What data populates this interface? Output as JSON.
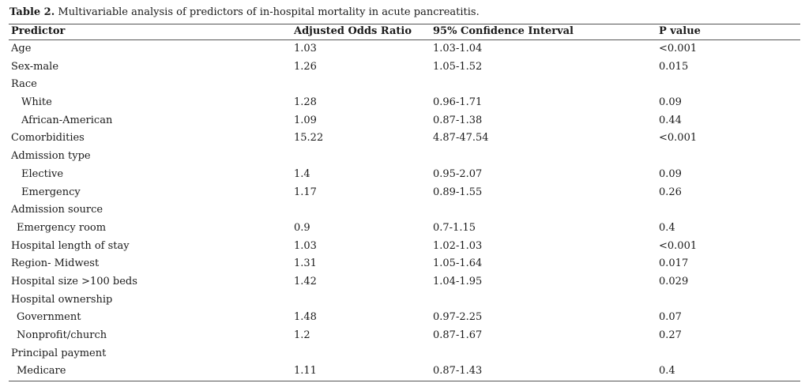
{
  "caption": {
    "label": "Table 2.",
    "text": " Multivariable analysis of predictors of in-hospital mortality in acute pancreatitis."
  },
  "columns": [
    "Predictor",
    "Adjusted Odds Ratio",
    "95% Confidence Interval",
    "P value"
  ],
  "rows": [
    {
      "predictor": "Age",
      "or": "1.03",
      "ci": "1.03-1.04",
      "p": "<0.001",
      "indent": 0
    },
    {
      "predictor": "Sex-male",
      "or": "1.26",
      "ci": "1.05-1.52",
      "p": "0.015",
      "indent": 0
    },
    {
      "predictor": "Race",
      "or": "",
      "ci": "",
      "p": "",
      "indent": 0
    },
    {
      "predictor": "White",
      "or": "1.28",
      "ci": "0.96-1.71",
      "p": "0.09",
      "indent": 1
    },
    {
      "predictor": "African-American",
      "or": "1.09",
      "ci": "0.87-1.38",
      "p": "0.44",
      "indent": 1
    },
    {
      "predictor": "Comorbidities",
      "or": "15.22",
      "ci": "4.87-47.54",
      "p": "<0.001",
      "indent": 0
    },
    {
      "predictor": "Admission type",
      "or": "",
      "ci": "",
      "p": "",
      "indent": 0
    },
    {
      "predictor": "Elective",
      "or": "1.4",
      "ci": "0.95-2.07",
      "p": "0.09",
      "indent": 1
    },
    {
      "predictor": "Emergency",
      "or": "1.17",
      "ci": "0.89-1.55",
      "p": "0.26",
      "indent": 1
    },
    {
      "predictor": "Admission source",
      "or": "",
      "ci": "",
      "p": "",
      "indent": 0
    },
    {
      "predictor": "Emergency room",
      "or": "0.9",
      "ci": "0.7-1.15",
      "p": "0.4",
      "indent": 2
    },
    {
      "predictor": "Hospital length of stay",
      "or": "1.03",
      "ci": "1.02-1.03",
      "p": "<0.001",
      "indent": 0
    },
    {
      "predictor": "Region- Midwest",
      "or": "1.31",
      "ci": "1.05-1.64",
      "p": "0.017",
      "indent": 0
    },
    {
      "predictor": "Hospital size >100 beds",
      "or": "1.42",
      "ci": "1.04-1.95",
      "p": "0.029",
      "indent": 0
    },
    {
      "predictor": "Hospital ownership",
      "or": "",
      "ci": "",
      "p": "",
      "indent": 0
    },
    {
      "predictor": "Government",
      "or": "1.48",
      "ci": "0.97-2.25",
      "p": "0.07",
      "indent": 2
    },
    {
      "predictor": "Nonprofit/church",
      "or": "1.2",
      "ci": "0.87-1.67",
      "p": "0.27",
      "indent": 2
    },
    {
      "predictor": "Principal payment",
      "or": "",
      "ci": "",
      "p": "",
      "indent": 0
    },
    {
      "predictor": "Medicare",
      "or": "1.11",
      "ci": "0.87-1.43",
      "p": "0.4",
      "indent": 2
    }
  ]
}
